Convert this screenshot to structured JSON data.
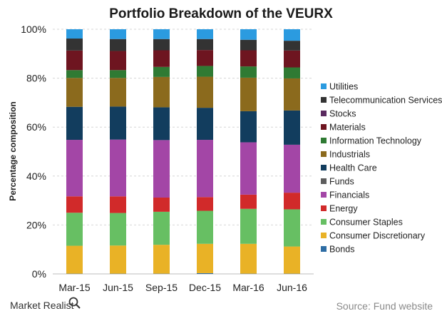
{
  "chart_data": {
    "type": "bar",
    "stacked": true,
    "title": "Portfolio Breakdown of the VEURX",
    "ylabel": "Percentage composition",
    "xlabel": "",
    "ylim": [
      0,
      100
    ],
    "yticks": [
      "0%",
      "20%",
      "40%",
      "60%",
      "80%",
      "100%"
    ],
    "grid": true,
    "legend_position": "right",
    "categories": [
      "Mar-15",
      "Jun-15",
      "Sep-15",
      "Dec-15",
      "Mar-16",
      "Jun-16"
    ],
    "series": [
      {
        "name": "Bonds",
        "color": "#2e6da4",
        "values": [
          0.1,
          0.1,
          0.1,
          0.3,
          0.1,
          0.1
        ]
      },
      {
        "name": "Consumer Discretionary",
        "color": "#e9b226",
        "values": [
          11.4,
          11.5,
          11.8,
          12.0,
          12.2,
          11.1
        ]
      },
      {
        "name": "Consumer Staples",
        "color": "#67bf63",
        "values": [
          13.5,
          13.3,
          13.5,
          13.5,
          14.3,
          15.2
        ]
      },
      {
        "name": "Energy",
        "color": "#d12a2a",
        "values": [
          6.7,
          6.8,
          5.8,
          5.6,
          5.8,
          6.8
        ]
      },
      {
        "name": "Financials",
        "color": "#a346a6",
        "values": [
          23.1,
          23.2,
          23.5,
          23.4,
          21.4,
          19.6
        ]
      },
      {
        "name": "Funds",
        "color": "#5d5d5d",
        "values": [
          0.0,
          0.0,
          0.0,
          0.0,
          0.0,
          0.0
        ]
      },
      {
        "name": "Health Care",
        "color": "#123d5e",
        "values": [
          13.5,
          13.5,
          13.4,
          13.1,
          12.7,
          14.0
        ]
      },
      {
        "name": "Industrials",
        "color": "#8b6a1d",
        "values": [
          11.8,
          11.7,
          12.4,
          12.7,
          13.7,
          13.1
        ]
      },
      {
        "name": "Information Technology",
        "color": "#2f7a33",
        "values": [
          3.2,
          3.2,
          4.1,
          4.4,
          4.6,
          4.5
        ]
      },
      {
        "name": "Materials",
        "color": "#6e1520",
        "values": [
          8.0,
          7.8,
          6.8,
          6.5,
          6.6,
          6.9
        ]
      },
      {
        "name": "Stocks",
        "color": "#5a2a5f",
        "values": [
          0.0,
          0.0,
          0.0,
          0.0,
          0.0,
          0.0
        ]
      },
      {
        "name": "Telecommunication Services",
        "color": "#333333",
        "values": [
          4.9,
          4.9,
          4.6,
          4.5,
          4.3,
          4.0
        ]
      },
      {
        "name": "Utilities",
        "color": "#2b9be0",
        "values": [
          3.8,
          4.0,
          4.0,
          4.0,
          4.3,
          4.7
        ]
      }
    ]
  },
  "brand": "Market Realist",
  "source": "Source: Fund website"
}
